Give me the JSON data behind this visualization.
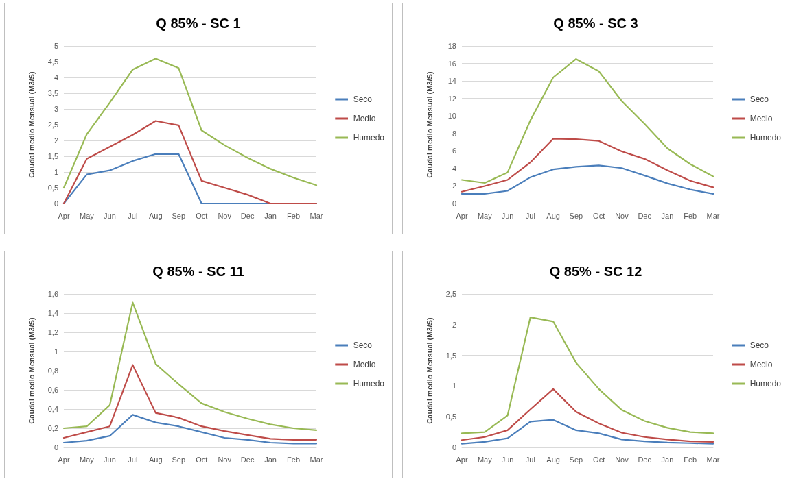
{
  "chart_data": [
    {
      "type": "line",
      "title": "Q 85% - SC 1",
      "ylabel": "Caudal medio Mensual (M3/S)",
      "categories": [
        "Apr",
        "May",
        "Jun",
        "Jul",
        "Aug",
        "Sep",
        "Oct",
        "Nov",
        "Dec",
        "Jan",
        "Feb",
        "Mar"
      ],
      "ylim": [
        0,
        5
      ],
      "yticks": [
        0,
        {
          "value": 0.5,
          "label": "0,5"
        },
        1,
        {
          "value": 1.5,
          "label": "1,5"
        },
        2,
        {
          "value": 2.5,
          "label": "2,5"
        },
        3,
        {
          "value": 3.5,
          "label": "3,5"
        },
        4,
        {
          "value": 4.5,
          "label": "4,5"
        },
        5
      ],
      "grid": "y",
      "legend": "right",
      "marker": "none",
      "line_style": "solid",
      "series": [
        {
          "name": "Seco",
          "color": "#4a7ebb",
          "values": [
            0,
            0.92,
            1.05,
            1.35,
            1.57,
            1.57,
            0,
            0,
            0,
            0,
            0,
            0
          ]
        },
        {
          "name": "Medio",
          "color": "#be4b48",
          "values": [
            0,
            1.42,
            1.8,
            2.18,
            2.62,
            2.48,
            0.72,
            0.5,
            0.28,
            0,
            0,
            0
          ]
        },
        {
          "name": "Humedo",
          "color": "#98b954",
          "values": [
            0.5,
            2.2,
            3.2,
            4.25,
            4.6,
            4.3,
            2.32,
            1.85,
            1.45,
            1.1,
            0.82,
            0.58
          ]
        }
      ]
    },
    {
      "type": "line",
      "title": "Q 85% - SC 3",
      "ylabel": "Caudal medio Mensual (M3/S)",
      "categories": [
        "Apr",
        "May",
        "Jun",
        "Jul",
        "Aug",
        "Sep",
        "Oct",
        "Nov",
        "Dec",
        "Jan",
        "Feb",
        "Mar"
      ],
      "ylim": [
        0,
        18
      ],
      "yticks": [
        0,
        2,
        4,
        6,
        8,
        10,
        12,
        14,
        16,
        18
      ],
      "grid": "y",
      "legend": "right",
      "marker": "none",
      "line_style": "solid",
      "series": [
        {
          "name": "Seco",
          "color": "#4a7ebb",
          "values": [
            1.1,
            1.1,
            1.45,
            3,
            3.9,
            4.2,
            4.35,
            4.05,
            3.2,
            2.3,
            1.6,
            1.1
          ]
        },
        {
          "name": "Medio",
          "color": "#be4b48",
          "values": [
            1.35,
            2,
            2.7,
            4.7,
            7.4,
            7.35,
            7.15,
            5.95,
            5.1,
            3.8,
            2.6,
            1.85
          ]
        },
        {
          "name": "Humedo",
          "color": "#98b954",
          "values": [
            2.7,
            2.35,
            3.55,
            9.5,
            14.4,
            16.5,
            15.1,
            11.7,
            9.1,
            6.3,
            4.5,
            3.1
          ]
        }
      ]
    },
    {
      "type": "line",
      "title": "Q 85% - SC 11",
      "ylabel": "Caudal medio Mensual (M3/S)",
      "categories": [
        "Apr",
        "May",
        "Jun",
        "Jul",
        "Aug",
        "Sep",
        "Oct",
        "Nov",
        "Dec",
        "Jan",
        "Feb",
        "Mar"
      ],
      "ylim": [
        0,
        1.6
      ],
      "yticks": [
        0,
        {
          "value": 0.2,
          "label": "0,2"
        },
        {
          "value": 0.4,
          "label": "0,4"
        },
        {
          "value": 0.6,
          "label": "0,6"
        },
        {
          "value": 0.8,
          "label": "0,8"
        },
        1,
        {
          "value": 1.2,
          "label": "1,2"
        },
        {
          "value": 1.4,
          "label": "1,4"
        },
        {
          "value": 1.6,
          "label": "1,6"
        }
      ],
      "grid": "y",
      "legend": "right",
      "marker": "none",
      "line_style": "solid",
      "series": [
        {
          "name": "Seco",
          "color": "#4a7ebb",
          "values": [
            0.05,
            0.07,
            0.12,
            0.34,
            0.26,
            0.22,
            0.16,
            0.1,
            0.08,
            0.05,
            0.04,
            0.04
          ]
        },
        {
          "name": "Medio",
          "color": "#be4b48",
          "values": [
            0.1,
            0.16,
            0.22,
            0.86,
            0.36,
            0.31,
            0.22,
            0.17,
            0.13,
            0.09,
            0.08,
            0.08
          ]
        },
        {
          "name": "Humedo",
          "color": "#98b954",
          "values": [
            0.2,
            0.22,
            0.44,
            1.51,
            0.87,
            0.66,
            0.46,
            0.37,
            0.3,
            0.24,
            0.2,
            0.18
          ]
        }
      ]
    },
    {
      "type": "line",
      "title": "Q 85% - SC 12",
      "ylabel": "Caudal medio Mensual (M3/S)",
      "categories": [
        "Apr",
        "May",
        "Jun",
        "Jul",
        "Aug",
        "Sep",
        "Oct",
        "Nov",
        "Dec",
        "Jan",
        "Feb",
        "Mar"
      ],
      "ylim": [
        0,
        2.5
      ],
      "yticks": [
        0,
        {
          "value": 0.5,
          "label": "0,5"
        },
        1,
        {
          "value": 1.5,
          "label": "1,5"
        },
        2,
        {
          "value": 2.5,
          "label": "2,5"
        }
      ],
      "grid": "y",
      "legend": "right",
      "marker": "none",
      "line_style": "solid",
      "series": [
        {
          "name": "Seco",
          "color": "#4a7ebb",
          "values": [
            0.06,
            0.09,
            0.15,
            0.42,
            0.45,
            0.28,
            0.23,
            0.13,
            0.1,
            0.08,
            0.07,
            0.06
          ]
        },
        {
          "name": "Medio",
          "color": "#be4b48",
          "values": [
            0.12,
            0.17,
            0.28,
            0.62,
            0.95,
            0.58,
            0.39,
            0.24,
            0.17,
            0.13,
            0.1,
            0.09
          ]
        },
        {
          "name": "Humedo",
          "color": "#98b954",
          "values": [
            0.23,
            0.25,
            0.52,
            2.12,
            2.05,
            1.38,
            0.95,
            0.61,
            0.43,
            0.32,
            0.25,
            0.23
          ]
        }
      ]
    }
  ]
}
